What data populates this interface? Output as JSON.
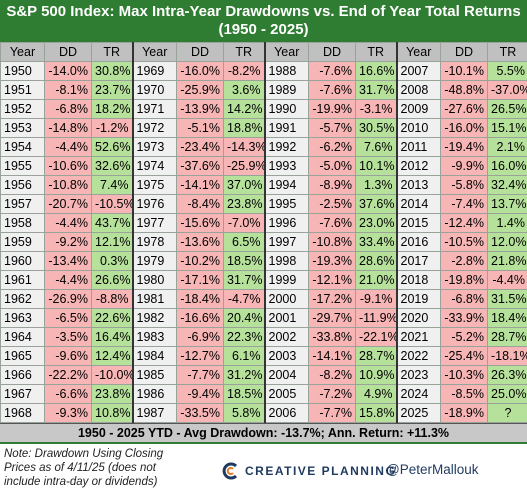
{
  "title": "S&P 500 Index: Max Intra-Year Drawdowns vs. End of Year Total Returns",
  "subtitle": "(1950 - 2025)",
  "table": {
    "groups": [
      {
        "headers": [
          "Year",
          "DD",
          "TR"
        ],
        "rows": [
          [
            "1950",
            "-14.0%",
            "30.8%"
          ],
          [
            "1951",
            "-8.1%",
            "23.7%"
          ],
          [
            "1952",
            "-6.8%",
            "18.2%"
          ],
          [
            "1953",
            "-14.8%",
            "-1.2%"
          ],
          [
            "1954",
            "-4.4%",
            "52.6%"
          ],
          [
            "1955",
            "-10.6%",
            "32.6%"
          ],
          [
            "1956",
            "-10.8%",
            "7.4%"
          ],
          [
            "1957",
            "-20.7%",
            "-10.5%"
          ],
          [
            "1958",
            "-4.4%",
            "43.7%"
          ],
          [
            "1959",
            "-9.2%",
            "12.1%"
          ],
          [
            "1960",
            "-13.4%",
            "0.3%"
          ],
          [
            "1961",
            "-4.4%",
            "26.6%"
          ],
          [
            "1962",
            "-26.9%",
            "-8.8%"
          ],
          [
            "1963",
            "-6.5%",
            "22.6%"
          ],
          [
            "1964",
            "-3.5%",
            "16.4%"
          ],
          [
            "1965",
            "-9.6%",
            "12.4%"
          ],
          [
            "1966",
            "-22.2%",
            "-10.0%"
          ],
          [
            "1967",
            "-6.6%",
            "23.8%"
          ],
          [
            "1968",
            "-9.3%",
            "10.8%"
          ]
        ]
      },
      {
        "headers": [
          "Year",
          "DD",
          "TR"
        ],
        "rows": [
          [
            "1969",
            "-16.0%",
            "-8.2%"
          ],
          [
            "1970",
            "-25.9%",
            "3.6%"
          ],
          [
            "1971",
            "-13.9%",
            "14.2%"
          ],
          [
            "1972",
            "-5.1%",
            "18.8%"
          ],
          [
            "1973",
            "-23.4%",
            "-14.3%"
          ],
          [
            "1974",
            "-37.6%",
            "-25.9%"
          ],
          [
            "1975",
            "-14.1%",
            "37.0%"
          ],
          [
            "1976",
            "-8.4%",
            "23.8%"
          ],
          [
            "1977",
            "-15.6%",
            "-7.0%"
          ],
          [
            "1978",
            "-13.6%",
            "6.5%"
          ],
          [
            "1979",
            "-10.2%",
            "18.5%"
          ],
          [
            "1980",
            "-17.1%",
            "31.7%"
          ],
          [
            "1981",
            "-18.4%",
            "-4.7%"
          ],
          [
            "1982",
            "-16.6%",
            "20.4%"
          ],
          [
            "1983",
            "-6.9%",
            "22.3%"
          ],
          [
            "1984",
            "-12.7%",
            "6.1%"
          ],
          [
            "1985",
            "-7.7%",
            "31.2%"
          ],
          [
            "1986",
            "-9.4%",
            "18.5%"
          ],
          [
            "1987",
            "-33.5%",
            "5.8%"
          ]
        ]
      },
      {
        "headers": [
          "Year",
          "DD",
          "TR"
        ],
        "rows": [
          [
            "1988",
            "-7.6%",
            "16.6%"
          ],
          [
            "1989",
            "-7.6%",
            "31.7%"
          ],
          [
            "1990",
            "-19.9%",
            "-3.1%"
          ],
          [
            "1991",
            "-5.7%",
            "30.5%"
          ],
          [
            "1992",
            "-6.2%",
            "7.6%"
          ],
          [
            "1993",
            "-5.0%",
            "10.1%"
          ],
          [
            "1994",
            "-8.9%",
            "1.3%"
          ],
          [
            "1995",
            "-2.5%",
            "37.6%"
          ],
          [
            "1996",
            "-7.6%",
            "23.0%"
          ],
          [
            "1997",
            "-10.8%",
            "33.4%"
          ],
          [
            "1998",
            "-19.3%",
            "28.6%"
          ],
          [
            "1999",
            "-12.1%",
            "21.0%"
          ],
          [
            "2000",
            "-17.2%",
            "-9.1%"
          ],
          [
            "2001",
            "-29.7%",
            "-11.9%"
          ],
          [
            "2002",
            "-33.8%",
            "-22.1%"
          ],
          [
            "2003",
            "-14.1%",
            "28.7%"
          ],
          [
            "2004",
            "-8.2%",
            "10.9%"
          ],
          [
            "2005",
            "-7.2%",
            "4.9%"
          ],
          [
            "2006",
            "-7.7%",
            "15.8%"
          ]
        ]
      },
      {
        "headers": [
          "Year",
          "DD",
          "TR"
        ],
        "rows": [
          [
            "2007",
            "-10.1%",
            "5.5%"
          ],
          [
            "2008",
            "-48.8%",
            "-37.0%"
          ],
          [
            "2009",
            "-27.6%",
            "26.5%"
          ],
          [
            "2010",
            "-16.0%",
            "15.1%"
          ],
          [
            "2011",
            "-19.4%",
            "2.1%"
          ],
          [
            "2012",
            "-9.9%",
            "16.0%"
          ],
          [
            "2013",
            "-5.8%",
            "32.4%"
          ],
          [
            "2014",
            "-7.4%",
            "13.7%"
          ],
          [
            "2015",
            "-12.4%",
            "1.4%"
          ],
          [
            "2016",
            "-10.5%",
            "12.0%"
          ],
          [
            "2017",
            "-2.8%",
            "21.8%"
          ],
          [
            "2018",
            "-19.8%",
            "-4.4%"
          ],
          [
            "2019",
            "-6.8%",
            "31.5%"
          ],
          [
            "2020",
            "-33.9%",
            "18.4%"
          ],
          [
            "2021",
            "-5.2%",
            "28.7%"
          ],
          [
            "2022",
            "-25.4%",
            "-18.1%"
          ],
          [
            "2023",
            "-10.3%",
            "26.3%"
          ],
          [
            "2024",
            "-8.5%",
            "25.0%"
          ],
          [
            "2025",
            "-18.9%",
            "?"
          ]
        ]
      }
    ]
  },
  "summary": "1950 - 2025 YTD - Avg Drawdown: -13.7%; Ann. Return: +11.3%",
  "note": "Note: Drawdown Using Closing Prices as of 4/11/25 (does not include intra-day or dividends)",
  "brand": "CREATIVE PLANNING",
  "handle": "@PeterMallouk"
}
